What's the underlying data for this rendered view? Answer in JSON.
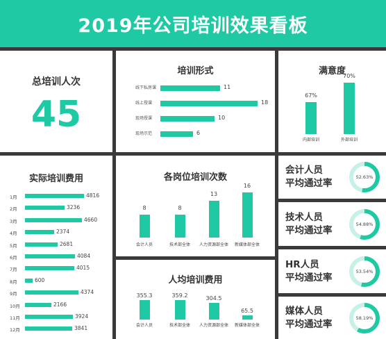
{
  "header": {
    "title": "2019年公司培训效果看板"
  },
  "total": {
    "title": "总培训人次",
    "value": "45"
  },
  "form": {
    "title": "培训形式",
    "items": [
      {
        "label": "线下私房课",
        "value": 11
      },
      {
        "label": "线上授课",
        "value": 18
      },
      {
        "label": "现场授课",
        "value": 10
      },
      {
        "label": "现场示范",
        "value": 6
      }
    ]
  },
  "satisfaction": {
    "title": "满意度",
    "items": [
      {
        "label": "内部培训",
        "value": 67,
        "display": "67%"
      },
      {
        "label": "外部培训",
        "value": 70,
        "display": "70%"
      }
    ]
  },
  "cost": {
    "title": "实际培训费用",
    "items": [
      {
        "label": "1月",
        "value": 4816
      },
      {
        "label": "2月",
        "value": 3236
      },
      {
        "label": "3月",
        "value": 4660
      },
      {
        "label": "4月",
        "value": 2374
      },
      {
        "label": "5月",
        "value": 2681
      },
      {
        "label": "6月",
        "value": 4084
      },
      {
        "label": "7月",
        "value": 4015
      },
      {
        "label": "8月",
        "value": 600
      },
      {
        "label": "9月",
        "value": 4374
      },
      {
        "label": "10月",
        "value": 2166
      },
      {
        "label": "11月",
        "value": 3924
      },
      {
        "label": "12月",
        "value": 3841
      }
    ]
  },
  "positions": {
    "title": "各岗位培训次数",
    "items": [
      {
        "label": "会计人员",
        "value": 8
      },
      {
        "label": "技术部全体",
        "value": 8
      },
      {
        "label": "人力资源部全体",
        "value": 13
      },
      {
        "label": "新媒体部全体",
        "value": 16
      }
    ]
  },
  "percap": {
    "title": "人均培训费用",
    "items": [
      {
        "label": "会计人员",
        "value": 355.3
      },
      {
        "label": "技术部全体",
        "value": 359.2
      },
      {
        "label": "人力资源部全体",
        "value": 304.5
      },
      {
        "label": "新媒体部全体",
        "value": 65.5
      }
    ]
  },
  "pass_rates": [
    {
      "line1": "会计人员",
      "line2": "平均通过率",
      "value": 52.63,
      "display": "52.63%"
    },
    {
      "line1": "技术人员",
      "line2": "平均通过率",
      "value": 54.88,
      "display": "54.88%"
    },
    {
      "line1": "HR人员",
      "line2": "平均通过率",
      "value": 53.54,
      "display": "53.54%"
    },
    {
      "line1": "媒体人员",
      "line2": "平均通过率",
      "value": 58.19,
      "display": "58.19%"
    }
  ],
  "chart_data": [
    {
      "type": "bar",
      "title": "培训形式",
      "categories": [
        "线下私房课",
        "线上授课",
        "现场授课",
        "现场示范"
      ],
      "values": [
        11,
        18,
        10,
        6
      ]
    },
    {
      "type": "bar",
      "title": "满意度",
      "categories": [
        "内部培训",
        "外部培训"
      ],
      "values": [
        67,
        70
      ]
    },
    {
      "type": "bar",
      "title": "实际培训费用",
      "categories": [
        "1月",
        "2月",
        "3月",
        "4月",
        "5月",
        "6月",
        "7月",
        "8月",
        "9月",
        "10月",
        "11月",
        "12月"
      ],
      "values": [
        4816,
        3236,
        4660,
        2374,
        2681,
        4084,
        4015,
        600,
        4374,
        2166,
        3924,
        3841
      ]
    },
    {
      "type": "bar",
      "title": "各岗位培训次数",
      "categories": [
        "会计人员",
        "技术部全体",
        "人力资源部全体",
        "新媒体部全体"
      ],
      "values": [
        8,
        8,
        13,
        16
      ]
    },
    {
      "type": "bar",
      "title": "人均培训费用",
      "categories": [
        "会计人员",
        "技术部全体",
        "人力资源部全体",
        "新媒体部全体"
      ],
      "values": [
        355.3,
        359.2,
        304.5,
        65.5
      ]
    },
    {
      "type": "pie",
      "title": "平均通过率",
      "categories": [
        "会计人员",
        "技术人员",
        "HR人员",
        "媒体人员"
      ],
      "values": [
        52.63,
        54.88,
        53.54,
        58.19
      ]
    }
  ],
  "colors": {
    "accent": "#1ec9a3",
    "accent_light": "#c7f1e6",
    "border": "#3a3a3a"
  }
}
